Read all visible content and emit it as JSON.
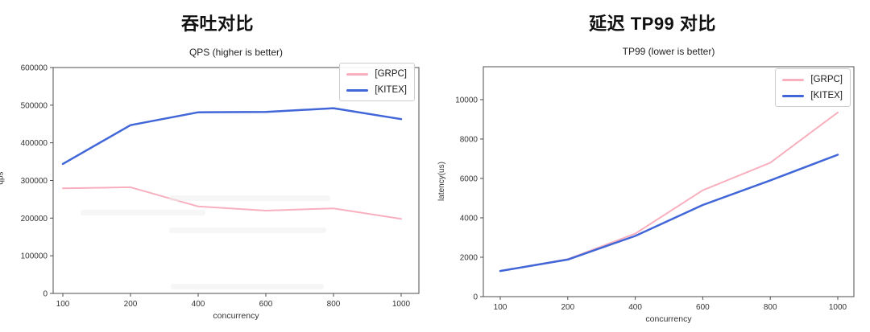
{
  "chart_data": [
    {
      "type": "line",
      "title": "吞吐对比",
      "subtitle": "QPS (higher is better)",
      "xlabel": "concurrency",
      "ylabel": "qps",
      "categories": [
        100,
        200,
        400,
        600,
        800,
        1000
      ],
      "ylim": [
        0,
        600000
      ],
      "yticks": [
        0,
        100000,
        200000,
        300000,
        400000,
        500000,
        600000
      ],
      "grid": false,
      "legend_position": "upper right",
      "series": [
        {
          "name": "[GRPC]",
          "color": "#f8b0bf",
          "values": [
            279000,
            282000,
            231000,
            220000,
            226000,
            198000
          ]
        },
        {
          "name": "[KITEX]",
          "color": "#4066d8",
          "values": [
            344000,
            447000,
            481000,
            482000,
            492000,
            463000
          ]
        }
      ]
    },
    {
      "type": "line",
      "title": "延迟 TP99 对比",
      "subtitle": "TP99 (lower is better)",
      "xlabel": "concurrency",
      "ylabel": "latency(us)",
      "categories": [
        100,
        200,
        400,
        600,
        800,
        1000
      ],
      "ylim": [
        0,
        11670
      ],
      "yticks": [
        0,
        2000,
        4000,
        6000,
        8000,
        10000
      ],
      "grid": false,
      "legend_position": "upper right",
      "series": [
        {
          "name": "[GRPC]",
          "color": "#f8b0bf",
          "values": [
            1300,
            1900,
            3200,
            5400,
            6800,
            9350
          ]
        },
        {
          "name": "[KITEX]",
          "color": "#4066d8",
          "values": [
            1300,
            1880,
            3080,
            4650,
            5900,
            7200
          ]
        }
      ]
    }
  ]
}
